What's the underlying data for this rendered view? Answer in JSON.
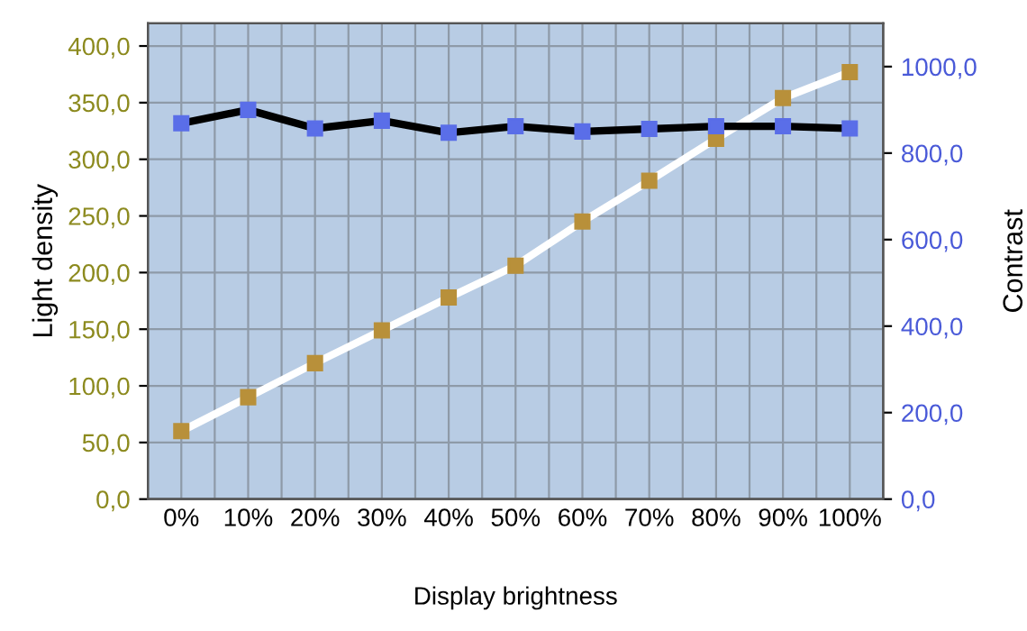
{
  "chart_data": {
    "type": "line",
    "xlabel": "Display brightness",
    "ylabel": "Light density",
    "y2label": "Contrast",
    "categories": [
      "0%",
      "10%",
      "20%",
      "30%",
      "40%",
      "50%",
      "60%",
      "70%",
      "80%",
      "90%",
      "100%"
    ],
    "series": [
      {
        "color": "#b8903a",
        "values": [
          60,
          90,
          120,
          149,
          178,
          206,
          245,
          281,
          318,
          354,
          377
        ]
      },
      {
        "color": "#5a6ee8",
        "axis": "y2",
        "values": [
          869,
          900,
          857,
          875,
          847,
          862,
          850,
          856,
          862,
          862,
          857
        ]
      }
    ],
    "ylim": [
      0,
      420
    ],
    "yticks": [
      {
        "value": 0,
        "label": "0,0"
      },
      {
        "value": 50,
        "label": "50,0"
      },
      {
        "value": 100,
        "label": "100,0"
      },
      {
        "value": 150,
        "label": "150,0"
      },
      {
        "value": 200,
        "label": "200,0"
      },
      {
        "value": 250,
        "label": "250,0"
      },
      {
        "value": 300,
        "label": "300,0"
      },
      {
        "value": 350,
        "label": "350,0"
      },
      {
        "value": 400,
        "label": "400,0"
      }
    ],
    "y2lim": [
      0,
      1100
    ],
    "y2ticks": [
      {
        "value": 0,
        "label": "0,0"
      },
      {
        "value": 200,
        "label": "200,0"
      },
      {
        "value": 400,
        "label": "400,0"
      },
      {
        "value": 600,
        "label": "600,0"
      },
      {
        "value": 800,
        "label": "800,0"
      },
      {
        "value": 1000,
        "label": "1000,0"
      }
    ],
    "grid": true,
    "marker": "square",
    "line_style": "solid"
  }
}
